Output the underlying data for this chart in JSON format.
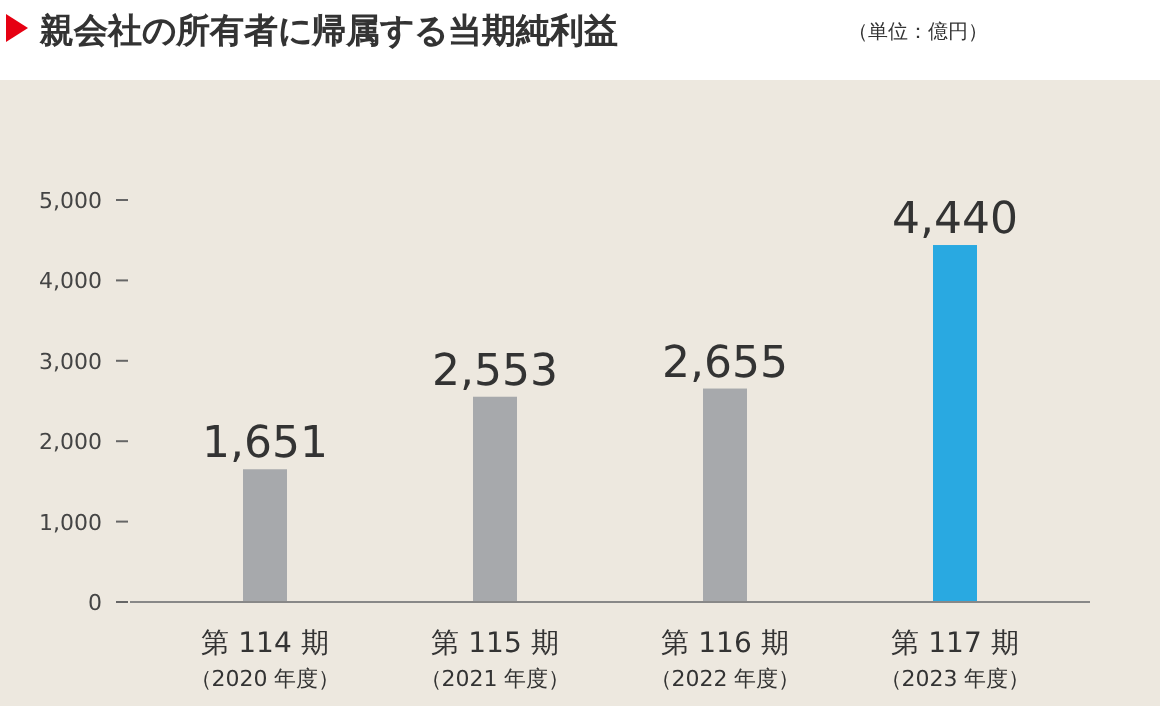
{
  "chart_data": {
    "type": "bar",
    "title": "親会社の所有者に帰属する当期純利益",
    "subtitle": "（単位：億円）",
    "categories": [
      "第 114 期（2020 年度）",
      "第 115 期（2021 年度）",
      "第 116 期（2022 年度）",
      "第 117 期（2023 年度）"
    ],
    "values": [
      1651,
      2553,
      2655,
      4440
    ],
    "colors": [
      "#a7a9ac",
      "#a7a9ac",
      "#a7a9ac",
      "#29a9e1"
    ],
    "value_labels": [
      "1,651",
      "2,553",
      "2,655",
      "4,440"
    ],
    "ylim": [
      0,
      5000
    ],
    "yticks": [
      0,
      {
        "value": 1000,
        "label": "1,000"
      },
      {
        "value": 2000,
        "label": "2,000"
      },
      {
        "value": 3000,
        "label": "3,000"
      },
      {
        "value": 4000,
        "label": "4,000"
      },
      {
        "value": 5000,
        "label": "5,000"
      }
    ],
    "grid": false
  }
}
